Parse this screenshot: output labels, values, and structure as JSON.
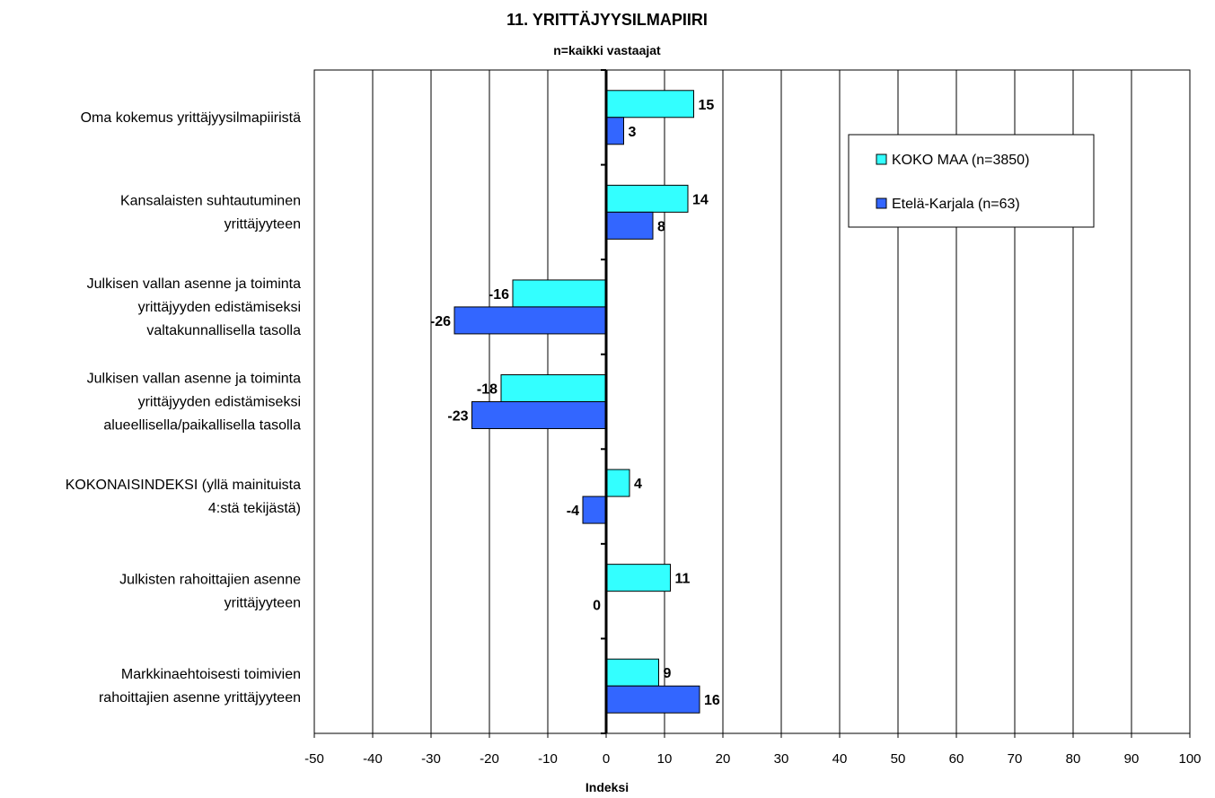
{
  "chart_data": {
    "type": "bar",
    "orientation": "horizontal",
    "title": "11. YRITTÄJYYSILMAPIIRI",
    "subtitle": "n=kaikki vastaajat",
    "xlabel": "Indeksi",
    "ylabel": "",
    "xlim": [
      -50,
      100
    ],
    "x_ticks": [
      "-50",
      "-40",
      "-30",
      "-20",
      "-10",
      "0",
      "10",
      "20",
      "30",
      "40",
      "50",
      "60",
      "70",
      "80",
      "90",
      "100"
    ],
    "grid": "vertical",
    "legend_position": "top-right",
    "categories": [
      [
        "Oma kokemus yrittäjyysilmapiiristä"
      ],
      [
        "Kansalaisten suhtautuminen",
        "yrittäjyyteen"
      ],
      [
        "Julkisen vallan asenne ja toiminta",
        "yrittäjyyden edistämiseksi",
        "valtakunnallisella tasolla"
      ],
      [
        "Julkisen vallan asenne ja toiminta",
        "yrittäjyyden edistämiseksi",
        "alueellisella/paikallisella tasolla"
      ],
      [
        "KOKONAISINDEKSI (yllä mainituista",
        "4:stä tekijästä)"
      ],
      [
        "Julkisten rahoittajien asenne",
        "yrittäjyyteen"
      ],
      [
        "Markkinaehtoisesti toimivien",
        "rahoittajien asenne yrittäjyyteen"
      ]
    ],
    "series": [
      {
        "name": "KOKO MAA (n=3850)",
        "color": "#33FFFF",
        "values": [
          15,
          14,
          -16,
          -18,
          4,
          11,
          9
        ],
        "labels": [
          "15",
          "14",
          "-16",
          "-18",
          "4",
          "11",
          "9"
        ]
      },
      {
        "name": "Etelä-Karjala (n=63)",
        "color": "#3366FF",
        "values": [
          3,
          8,
          -26,
          -23,
          -4,
          0,
          16
        ],
        "labels": [
          "3",
          "8",
          "-26",
          "-23",
          "-4",
          "0",
          "16"
        ]
      }
    ]
  }
}
